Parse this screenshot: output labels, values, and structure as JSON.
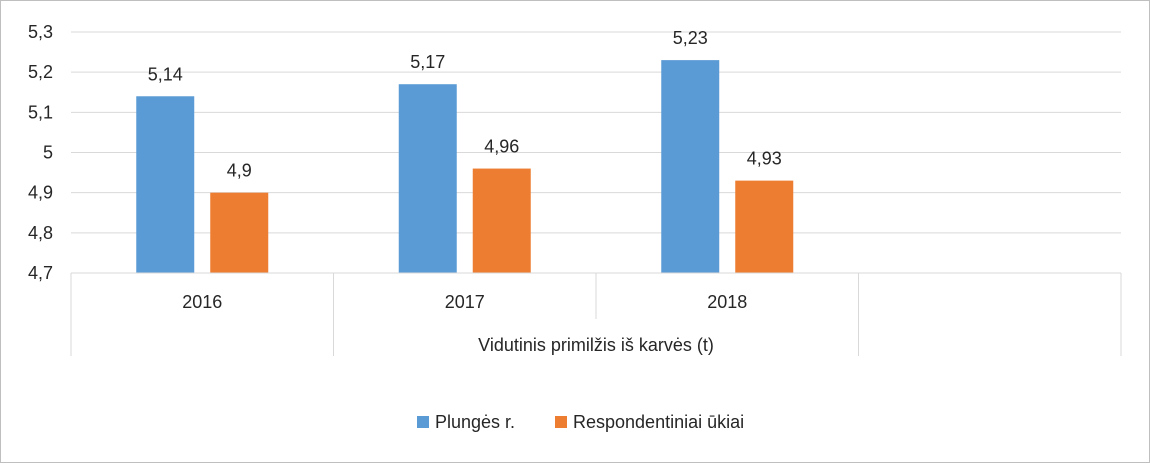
{
  "chart_data": {
    "type": "bar",
    "categories": [
      "2016",
      "2017",
      "2018",
      ""
    ],
    "group_label": "Vidutinis primilžis iš karvės (t)",
    "series": [
      {
        "name": "Plungės r.",
        "color": "#5b9bd5",
        "values": [
          5.14,
          5.17,
          5.23,
          null
        ],
        "labels": [
          "5,14",
          "5,17",
          "5,23",
          ""
        ]
      },
      {
        "name": "Respondentiniai ūkiai",
        "color": "#ed7d31",
        "values": [
          4.9,
          4.96,
          4.93,
          null
        ],
        "labels": [
          "4,9",
          "4,96",
          "4,93",
          ""
        ]
      }
    ],
    "ylim": [
      4.7,
      5.3
    ],
    "yticks": [
      4.7,
      4.8,
      4.9,
      5.0,
      5.1,
      5.2,
      5.3
    ],
    "ytick_labels": [
      "4,7",
      "4,8",
      "4,9",
      "5",
      "5,1",
      "5,2",
      "5,3"
    ],
    "grid": true,
    "legend_position": "bottom",
    "title": "",
    "xlabel": "",
    "ylabel": ""
  }
}
